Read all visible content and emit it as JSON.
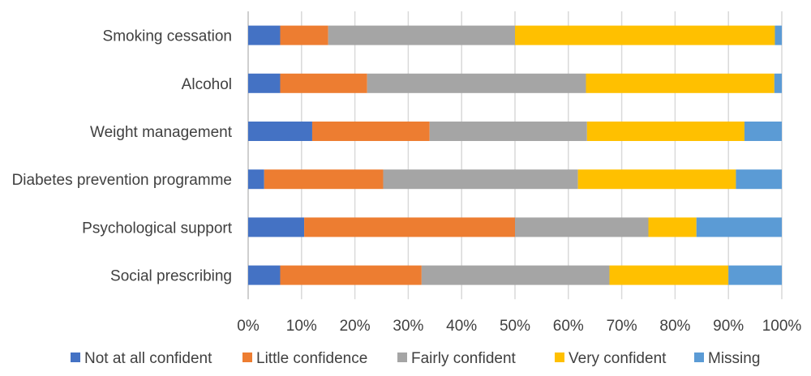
{
  "chart_data": {
    "type": "bar",
    "orientation": "horizontal",
    "stacked": true,
    "percent": true,
    "title": "",
    "xlabel": "",
    "ylabel": "",
    "xlim": [
      0,
      100
    ],
    "x_ticks": [
      "0%",
      "10%",
      "20%",
      "30%",
      "40%",
      "50%",
      "60%",
      "70%",
      "80%",
      "90%",
      "100%"
    ],
    "grid": true,
    "legend_position": "bottom",
    "categories": [
      "Smoking cessation",
      "Alcohol",
      "Weight management",
      "Diabetes prevention programme",
      "Psychological support",
      "Social prescribing"
    ],
    "series": [
      {
        "name": "Not at all confident",
        "color": "#4472C4",
        "values": [
          6,
          6,
          12,
          3,
          10.5,
          6
        ]
      },
      {
        "name": "Little confidence",
        "color": "#ED7D31",
        "values": [
          9,
          16.3,
          22,
          22.3,
          39.5,
          26.5
        ]
      },
      {
        "name": "Fairly confident",
        "color": "#A5A5A5",
        "values": [
          35,
          41,
          29.5,
          36.5,
          25,
          35.2
        ]
      },
      {
        "name": "Very confident",
        "color": "#FFC000",
        "values": [
          48.7,
          35.3,
          29.5,
          29.6,
          9,
          22.3
        ]
      },
      {
        "name": "Missing",
        "color": "#5B9BD5",
        "values": [
          1.3,
          1.4,
          7,
          8.6,
          16,
          10
        ]
      }
    ]
  }
}
